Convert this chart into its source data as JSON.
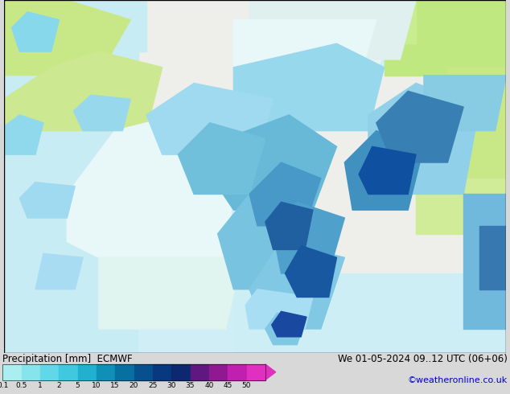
{
  "title_left": "Precipitation [mm]  ECMWF",
  "title_right": "We 01-05-2024 09..12 UTC (06+06)",
  "credit": "©weatheronline.co.uk",
  "colorbar_levels": [
    0.1,
    0.5,
    1,
    2,
    5,
    10,
    15,
    20,
    25,
    30,
    35,
    40,
    45,
    50
  ],
  "colorbar_colors": [
    "#aaf0f0",
    "#78e0e0",
    "#50d0d0",
    "#28b8c8",
    "#209898",
    "#007878",
    "#006060",
    "#004888",
    "#0030b0",
    "#0018d0",
    "#8800c0",
    "#aa00aa",
    "#cc00cc",
    "#ee00ee"
  ],
  "background_color": "#d8d8d8",
  "label_fontsize": 9,
  "credit_color": "#0000cc",
  "map_background": "#f0f0ee",
  "sea_color": "#c8e8f0",
  "green_low": "#c8e890",
  "green_med": "#a0d870",
  "cyan_low": "#b0eaf0",
  "cyan_med": "#80d8e8",
  "blue_light": "#90c8e0",
  "blue_med": "#60a8d0",
  "blue_dark": "#3080b8",
  "blue_darker": "#1060a0"
}
